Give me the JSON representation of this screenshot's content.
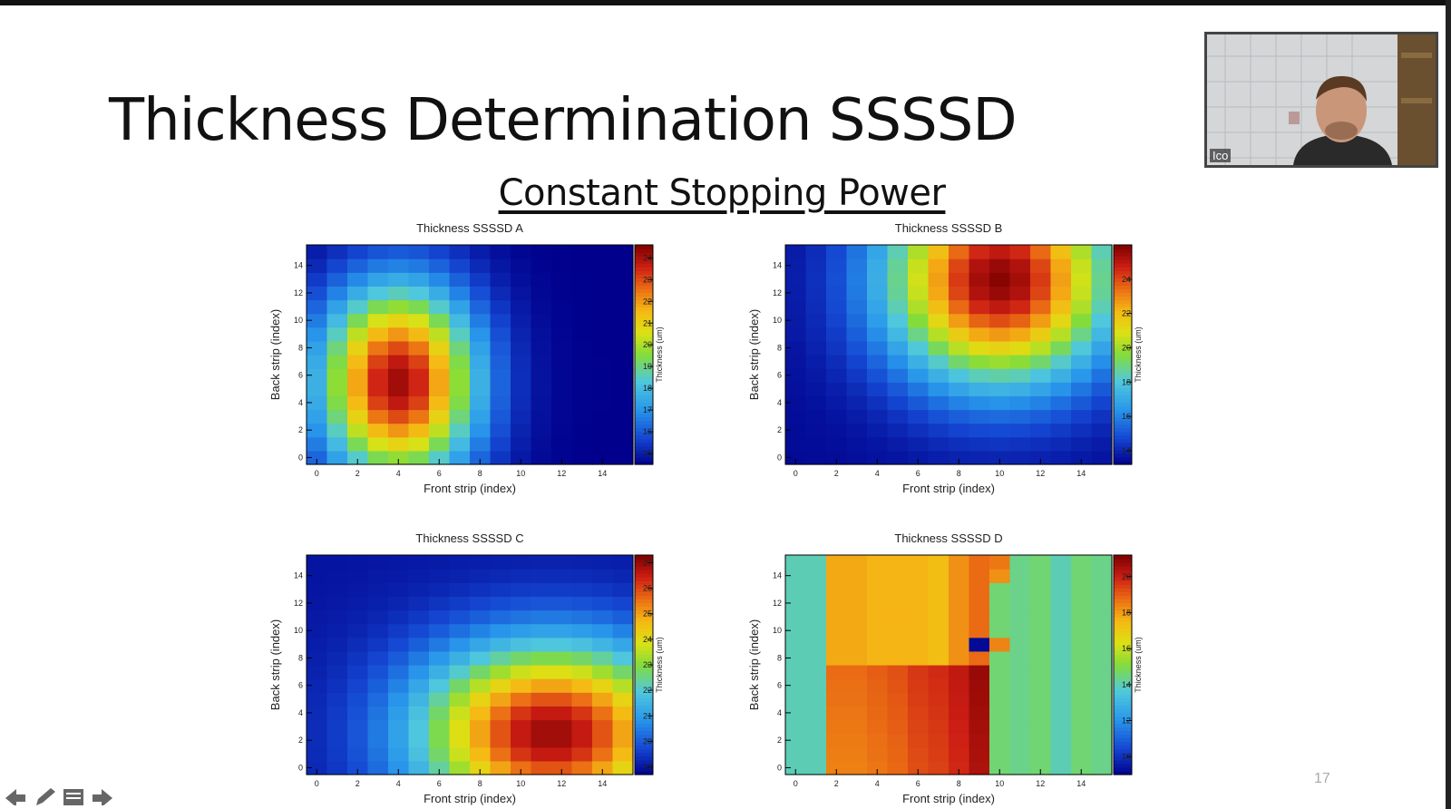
{
  "slide": {
    "title": "Thickness Determination SSSSD",
    "subtitle": "Constant Stopping Power",
    "page_number": "17"
  },
  "video": {
    "participant_label": "Ico"
  },
  "nav": {
    "icons": [
      "arrow-left-icon",
      "pen-icon",
      "notes-icon",
      "arrow-right-icon"
    ]
  },
  "colors": {
    "text": "#111111",
    "page_number": "#aaaaaa",
    "frame": "#000000"
  },
  "chart_data": [
    {
      "type": "heatmap",
      "title": "Thickness SSSSD A",
      "xlabel": "Front strip (index)",
      "ylabel": "Back strip (index)",
      "zlabel": "Thickness (um)",
      "x_ticks": [
        "0",
        "2",
        "4",
        "6",
        "8",
        "10",
        "12",
        "14"
      ],
      "y_ticks": [
        "0",
        "2",
        "4",
        "6",
        "8",
        "10",
        "12",
        "14"
      ],
      "z_ticks": [
        "15",
        "16",
        "17",
        "18",
        "19",
        "20",
        "21",
        "22",
        "23",
        "24"
      ],
      "zlim": [
        14.5,
        24.6
      ],
      "nx": 16,
      "ny": 16,
      "model": {
        "kind": "gaussian",
        "peak": [
          4.0,
          5.5
        ],
        "sigma": [
          3.8,
          7.0
        ],
        "zmax": 24.2,
        "zmin": 14.5
      }
    },
    {
      "type": "heatmap",
      "title": "Thickness SSSSD B",
      "xlabel": "Front strip (index)",
      "ylabel": "Back strip (index)",
      "zlabel": "Thickness (um)",
      "x_ticks": [
        "0",
        "2",
        "4",
        "6",
        "8",
        "10",
        "12",
        "14"
      ],
      "y_ticks": [
        "0",
        "2",
        "4",
        "6",
        "8",
        "10",
        "12",
        "14"
      ],
      "z_ticks": [
        "14",
        "16",
        "18",
        "20",
        "22",
        "24"
      ],
      "zlim": [
        13.2,
        26.0
      ],
      "nx": 16,
      "ny": 16,
      "model": {
        "kind": "gaussian",
        "peak": [
          10.0,
          13.0
        ],
        "sigma": [
          5.5,
          7.5
        ],
        "zmax": 25.8,
        "zmin": 13.4
      }
    },
    {
      "type": "heatmap",
      "title": "Thickness SSSSD C",
      "xlabel": "Front strip (index)",
      "ylabel": "Back strip (index)",
      "zlabel": "Thickness (um)",
      "x_ticks": [
        "0",
        "2",
        "4",
        "6",
        "8",
        "10",
        "12",
        "14"
      ],
      "y_ticks": [
        "0",
        "2",
        "4",
        "6",
        "8",
        "10",
        "12",
        "14"
      ],
      "z_ticks": [
        "19",
        "20",
        "21",
        "22",
        "23",
        "24",
        "25",
        "26",
        "27"
      ],
      "zlim": [
        18.7,
        27.3
      ],
      "nx": 16,
      "ny": 16,
      "model": {
        "kind": "gaussian",
        "peak": [
          11.5,
          2.5
        ],
        "sigma": [
          6.5,
          6.5
        ],
        "zmax": 27.0,
        "zmin": 19.0
      }
    },
    {
      "type": "heatmap",
      "title": "Thickness SSSSD D",
      "xlabel": "Front strip (index)",
      "ylabel": "Back strip (index)",
      "zlabel": "Thickness (um)",
      "x_ticks": [
        "0",
        "2",
        "4",
        "6",
        "8",
        "10",
        "12",
        "14"
      ],
      "y_ticks": [
        "0",
        "2",
        "4",
        "6",
        "8",
        "10",
        "12",
        "14"
      ],
      "z_ticks": [
        "10",
        "12",
        "14",
        "16",
        "18",
        "20"
      ],
      "zlim": [
        9.0,
        21.2
      ],
      "nx": 16,
      "ny": 16,
      "model": {
        "kind": "columns",
        "columns": [
          14.0,
          14.0,
          17.8,
          17.8,
          17.6,
          17.6,
          17.6,
          17.4,
          18.2,
          18.8,
          14.6,
          14.4,
          14.6,
          14.0,
          14.6,
          14.4
        ],
        "low_rows": [
          18.8,
          18.8,
          19.0,
          19.2,
          19.6,
          19.8,
          20.2,
          20.8
        ],
        "special": [
          [
            9,
            9,
            9.2
          ],
          [
            10,
            9,
            18.4
          ],
          [
            10,
            14,
            18.2
          ],
          [
            10,
            15,
            18.6
          ]
        ]
      }
    }
  ]
}
